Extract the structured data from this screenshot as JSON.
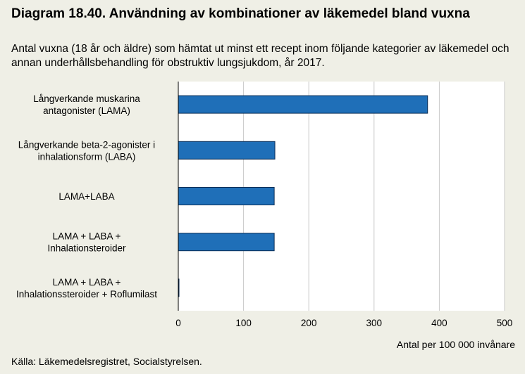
{
  "header": {
    "title": "Diagram 18.40. Användning av kombinationer av läkemedel bland vuxna",
    "subtitle": "Antal vuxna (18 år och äldre) som hämtat ut minst ett recept inom följande kategorier av läkemedel och annan underhållsbehandling för obstruktiv lungsjukdom, år 2017."
  },
  "footer": {
    "source": "Källa: Läkemedelsregistret, Socialstyrelsen."
  },
  "colors": {
    "bar": "#1f6fb8",
    "bar_edge": "#0b2d55",
    "plot_bg": "#ffffff",
    "page_bg": "#efefe6"
  },
  "chart_data": {
    "type": "bar",
    "orientation": "horizontal",
    "title": "Diagram 18.40. Användning av kombinationer av läkemedel bland vuxna",
    "xlabel": "Antal per 100 000 invånare",
    "ylabel": "",
    "xlim": [
      0,
      500
    ],
    "xticks": [
      0,
      100,
      200,
      300,
      400,
      500
    ],
    "grid": "vertical",
    "categories": [
      [
        "Långverkande muskarina",
        "antagonister (LAMA)"
      ],
      [
        "Långverkande beta-2-agonister i",
        "inhalationsform (LABA)"
      ],
      [
        "LAMA+LABA"
      ],
      [
        "LAMA + LABA +",
        "Inhalationsteroider"
      ],
      [
        "LAMA  + LABA +",
        "Inhalationssteroider  + Roflumilast"
      ]
    ],
    "values": [
      382,
      148,
      147,
      147,
      1
    ]
  }
}
